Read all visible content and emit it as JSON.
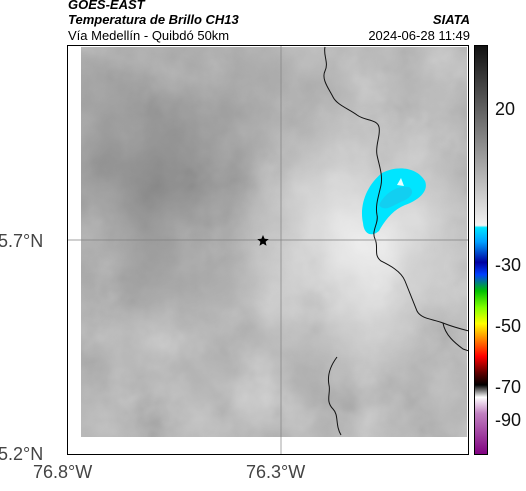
{
  "header": {
    "satellite": "GOES-EAST",
    "product": "Temperatura de Brillo CH13",
    "region": "Vía Medellín - Quibdó 50km",
    "agency": "SIATA",
    "datetime": "2024-06-28 11:49"
  },
  "map": {
    "x_ticks": [
      "76.8°W",
      "76.3°W"
    ],
    "y_ticks": [
      "5.7°N",
      "5.2°N"
    ],
    "marker_icon": "star-icon",
    "colors": {
      "background_gray": "#b8b8b8",
      "cold_cloud_cyan": "#00e5ff",
      "border_line": "#000000",
      "gridline": "#808080"
    }
  },
  "colorbar": {
    "labels": [
      "20",
      "-30",
      "-50",
      "-70",
      "-90"
    ]
  }
}
